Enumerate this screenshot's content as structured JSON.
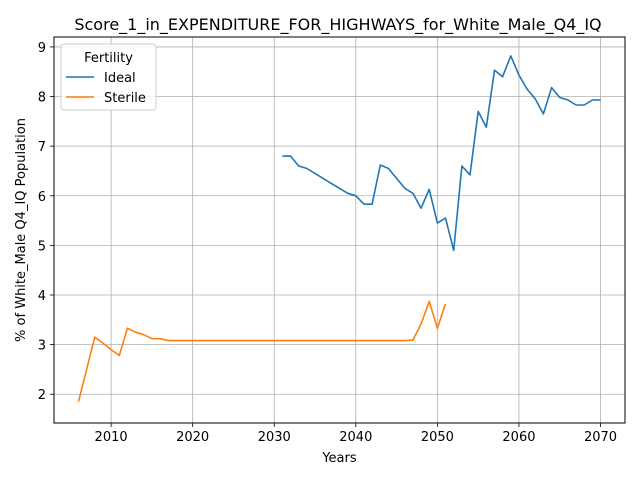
{
  "chart_data": {
    "type": "line",
    "title": "Score_1_in_EXPENDITURE_FOR_HIGHWAYS_for_White_Male_Q4_IQ",
    "xlabel": "Years",
    "ylabel": "% of White_Male Q4_IQ Population",
    "xlim": [
      2003,
      2073
    ],
    "ylim": [
      1.42,
      9.2
    ],
    "xticks": [
      2010,
      2020,
      2030,
      2040,
      2050,
      2060,
      2070
    ],
    "yticks": [
      2,
      3,
      4,
      5,
      6,
      7,
      8,
      9
    ],
    "grid": true,
    "legend": {
      "title": "Fertility",
      "placement": "top-left"
    },
    "series": [
      {
        "name": "Ideal",
        "color": "#1f77b4",
        "x": [
          2031,
          2032,
          2033,
          2034,
          2035,
          2036,
          2037,
          2038,
          2039,
          2040,
          2041,
          2042,
          2043,
          2044,
          2045,
          2046,
          2047,
          2048,
          2049,
          2050,
          2051,
          2052,
          2053,
          2054,
          2055,
          2056,
          2057,
          2058,
          2059,
          2060,
          2061,
          2062,
          2063,
          2064,
          2065,
          2066,
          2067,
          2068,
          2069,
          2070
        ],
        "y": [
          6.8,
          6.8,
          6.6,
          6.55,
          6.45,
          6.35,
          6.25,
          6.15,
          6.05,
          6.0,
          5.83,
          5.83,
          6.62,
          6.55,
          6.35,
          6.15,
          6.05,
          5.75,
          6.13,
          5.45,
          5.55,
          4.9,
          6.6,
          6.42,
          7.7,
          7.38,
          8.53,
          8.4,
          8.82,
          8.43,
          8.15,
          7.95,
          7.65,
          8.18,
          7.98,
          7.93,
          7.83,
          7.83,
          7.93,
          7.93
        ]
      },
      {
        "name": "Sterile",
        "color": "#ff7f0e",
        "x": [
          2006,
          2007,
          2008,
          2009,
          2010,
          2011,
          2012,
          2013,
          2014,
          2015,
          2016,
          2017,
          2018,
          2019,
          2020,
          2025,
          2030,
          2035,
          2040,
          2045,
          2046,
          2047,
          2048,
          2049,
          2050,
          2051
        ],
        "y": [
          1.85,
          2.5,
          3.15,
          3.03,
          2.9,
          2.78,
          3.33,
          3.25,
          3.2,
          3.12,
          3.12,
          3.08,
          3.08,
          3.08,
          3.08,
          3.08,
          3.08,
          3.08,
          3.08,
          3.08,
          3.08,
          3.09,
          3.42,
          3.87,
          3.33,
          3.82
        ]
      }
    ]
  }
}
